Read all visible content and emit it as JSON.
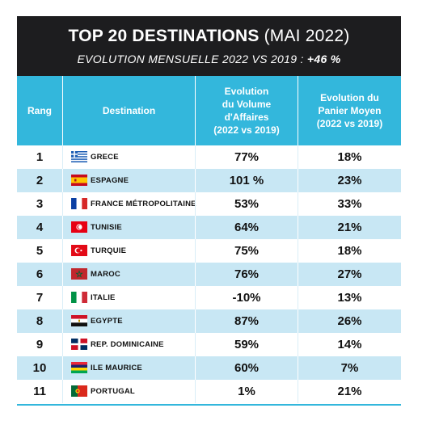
{
  "header": {
    "title_bold": "TOP 20 DESTINATIONS",
    "title_regular": "(MAI 2022)",
    "subtitle_prefix": "EVOLUTION MENSUELLE 2022 VS 2019 :",
    "subtitle_value": "+46 %"
  },
  "columns": {
    "rang": "Rang",
    "destination": "Destination",
    "volume": "Evolution\ndu Volume\nd'Affaires\n(2022 vs 2019)",
    "panier": "Evolution du\nPanier Moyen\n(2022 vs 2019)"
  },
  "rows": [
    {
      "rank": "1",
      "destination": "GRECE",
      "flag": "greece-flag-icon",
      "volume": "77%",
      "panier": "18%"
    },
    {
      "rank": "2",
      "destination": "ESPAGNE",
      "flag": "spain-flag-icon",
      "volume": "101 %",
      "panier": "23%"
    },
    {
      "rank": "3",
      "destination": "FRANCE MÉTROPOLITAINE",
      "flag": "france-flag-icon",
      "volume": "53%",
      "panier": "33%"
    },
    {
      "rank": "4",
      "destination": "TUNISIE",
      "flag": "tunisia-flag-icon",
      "volume": "64%",
      "panier": "21%"
    },
    {
      "rank": "5",
      "destination": "TURQUIE",
      "flag": "turkey-flag-icon",
      "volume": "75%",
      "panier": "18%"
    },
    {
      "rank": "6",
      "destination": "MAROC",
      "flag": "morocco-flag-icon",
      "volume": "76%",
      "panier": "27%"
    },
    {
      "rank": "7",
      "destination": "ITALIE",
      "flag": "italy-flag-icon",
      "volume": "-10%",
      "panier": "13%"
    },
    {
      "rank": "8",
      "destination": "EGYPTE",
      "flag": "egypt-flag-icon",
      "volume": "87%",
      "panier": "26%"
    },
    {
      "rank": "9",
      "destination": "REP. DOMINICAINE",
      "flag": "dominican-republic-flag-icon",
      "volume": "59%",
      "panier": "14%"
    },
    {
      "rank": "10",
      "destination": "ILE MAURICE",
      "flag": "mauritius-flag-icon",
      "volume": "60%",
      "panier": "7%"
    },
    {
      "rank": "11",
      "destination": "PORTUGAL",
      "flag": "portugal-flag-icon",
      "volume": "1%",
      "panier": "21%"
    }
  ],
  "colors": {
    "header_bg": "#1d1d1f",
    "column_header_bg": "#33b7dc",
    "alt_row_bg": "#c8e7f4"
  }
}
